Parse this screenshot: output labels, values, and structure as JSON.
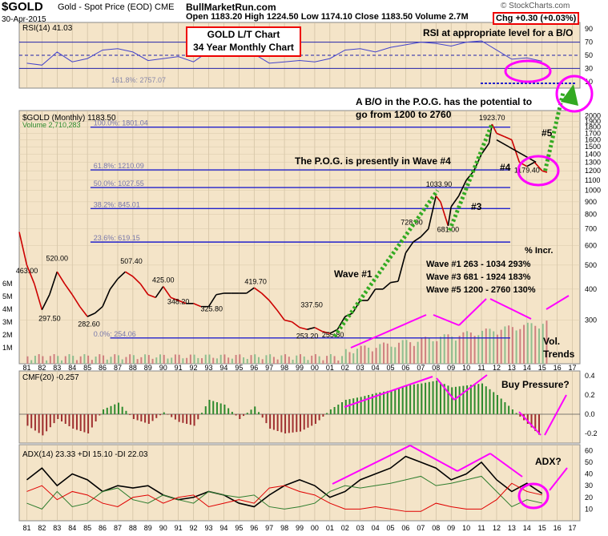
{
  "header": {
    "symbol": "$GOLD",
    "description": "Gold - Spot Price (EOD)  CME",
    "date": "30-Apr-2015",
    "site": "BullMarketRun.com",
    "ohlc": "Open 1183.20  High 1224.50  Low 1174.10  Close 1183.50  Volume 2.7M",
    "chg_label": "Chg",
    "chg_value": "+0.30 (+0.03%)",
    "copyright": "© StockCharts.com"
  },
  "annotation_box": {
    "line1": "GOLD L/T Chart",
    "line2": "34 Year Monthly Chart"
  },
  "colors": {
    "panel_bg": "#f4e4c8",
    "rsi_line": "#4444cc",
    "price_line": "#000000",
    "price_up": "#000000",
    "price_down": "#cc0000",
    "fib_line": "#2222cc",
    "volume_up": "#8fbf8f",
    "volume_down": "#d08080",
    "cmf_pos": "#2e8b2e",
    "cmf_neg": "#a03030",
    "adx_line": "#000000",
    "plus_di": "#2e7d2e",
    "minus_di": "#e00000",
    "magenta": "#ff00ff",
    "green_dots": "#33aa22",
    "annotation_red": "#e00000"
  },
  "chart_data": [
    {
      "type": "line",
      "panel": "rsi",
      "title": "RSI(14) 41.03",
      "ylim": [
        0,
        100
      ],
      "yticks": [
        10,
        30,
        50,
        70,
        90
      ],
      "reference_lines": [
        30,
        50,
        70
      ],
      "annotation": "RSI at appropriate level for a B/O",
      "fib_label": "161.8%: 2757.07",
      "series": [
        {
          "x": [
            1981,
            1982,
            1983,
            1984,
            1985,
            1986,
            1987,
            1988,
            1989,
            1990,
            1991,
            1992,
            1993,
            1994,
            1995,
            1996,
            1997,
            1998,
            1999,
            2000,
            2001,
            2002,
            2003,
            2004,
            2005,
            2006,
            2007,
            2008,
            2009,
            2010,
            2011,
            2012,
            2013,
            2014,
            2015
          ],
          "values": [
            38,
            35,
            55,
            40,
            45,
            58,
            60,
            55,
            42,
            45,
            48,
            40,
            56,
            50,
            48,
            52,
            38,
            40,
            42,
            40,
            45,
            58,
            60,
            55,
            62,
            66,
            70,
            68,
            64,
            70,
            72,
            58,
            44,
            46,
            41
          ]
        }
      ]
    },
    {
      "type": "line",
      "panel": "price",
      "title": "$GOLD (Monthly) 1183.50",
      "volume_label": "Volume 2,710,283",
      "y_scale": "log",
      "ylim": [
        200,
        2100
      ],
      "yticks": [
        300,
        400,
        500,
        600,
        700,
        800,
        900,
        1000,
        1100,
        1200,
        1300,
        1400,
        1500,
        1600,
        1700,
        1800,
        1900,
        2000
      ],
      "volume_ticks": [
        "6M",
        "5M",
        "4M",
        "3M",
        "2M",
        "1M"
      ],
      "fib_levels": [
        {
          "label": "100.0%: 1801.04",
          "value": 1801.04
        },
        {
          "label": "61.8%: 1210.09",
          "value": 1210.09
        },
        {
          "label": "50.0%: 1027.55",
          "value": 1027.55
        },
        {
          "label": "38.2%: 845.01",
          "value": 845.01
        },
        {
          "label": "23.6%: 619.15",
          "value": 619.15
        },
        {
          "label": "0.0%: 254.06",
          "value": 254.06
        }
      ],
      "price_labels": [
        {
          "text": "463.00",
          "x": 1981.0,
          "y": 463
        },
        {
          "text": "520.00",
          "x": 1983.0,
          "y": 520
        },
        {
          "text": "297.50",
          "x": 1982.5,
          "y": 297.5
        },
        {
          "text": "282.60",
          "x": 1985.1,
          "y": 282.6
        },
        {
          "text": "507.40",
          "x": 1987.9,
          "y": 507.4
        },
        {
          "text": "425.00",
          "x": 1990.0,
          "y": 425
        },
        {
          "text": "348.20",
          "x": 1991.0,
          "y": 348.2
        },
        {
          "text": "325.80",
          "x": 1993.2,
          "y": 325.8
        },
        {
          "text": "419.70",
          "x": 1996.1,
          "y": 419.7
        },
        {
          "text": "337.50",
          "x": 1999.8,
          "y": 337.5
        },
        {
          "text": "253.20",
          "x": 1999.5,
          "y": 253.2
        },
        {
          "text": "255.80",
          "x": 2001.2,
          "y": 255.8
        },
        {
          "text": "728.00",
          "x": 2006.4,
          "y": 728
        },
        {
          "text": "1033.90",
          "x": 2008.2,
          "y": 1033.9
        },
        {
          "text": "681.00",
          "x": 2008.8,
          "y": 681
        },
        {
          "text": "1923.70",
          "x": 2011.7,
          "y": 1923.7
        },
        {
          "text": "1179.40",
          "x": 2014.0,
          "y": 1179.4
        }
      ],
      "annotations": {
        "bo_text_line1": "A B/O in the P.O.G. has the potential to",
        "bo_text_line2": "go from 1200 to 2760",
        "wave4_text": "The P.O.G. is presently in Wave #4",
        "wave1": "Wave #1",
        "wave3": "#3",
        "wave4": "#4",
        "wave5": "#5",
        "vol_trends_1": "Vol.",
        "vol_trends_2": "Trends",
        "table_header": "% Incr.",
        "table_rows": [
          "Wave #1   263  -  1034   293%",
          "Wave #3   681  -  1924   183%",
          "Wave #5   1200  -  2760   130%"
        ]
      },
      "series": [
        {
          "name": "$GOLD",
          "x": [
            1980.5,
            1981,
            1981.5,
            1982,
            1982.5,
            1983,
            1983.5,
            1984,
            1984.5,
            1985,
            1985.5,
            1986,
            1986.5,
            1987,
            1987.5,
            1988,
            1988.5,
            1989,
            1989.5,
            1990,
            1990.5,
            1991,
            1991.5,
            1992,
            1992.5,
            1993,
            1993.5,
            1994,
            1994.5,
            1995,
            1995.5,
            1996,
            1996.5,
            1997,
            1997.5,
            1998,
            1998.5,
            1999,
            1999.5,
            2000,
            2000.5,
            2001,
            2001.5,
            2002,
            2002.5,
            2003,
            2003.5,
            2004,
            2004.5,
            2005,
            2005.5,
            2006,
            2006.5,
            2007,
            2007.5,
            2008,
            2008.3,
            2008.8,
            2009,
            2009.5,
            2010,
            2010.5,
            2011,
            2011.5,
            2011.7,
            2012,
            2012.5,
            2013,
            2013.5,
            2014,
            2014.5,
            2015,
            2015.33
          ],
          "values": [
            680,
            500,
            420,
            330,
            380,
            470,
            420,
            380,
            340,
            310,
            320,
            340,
            400,
            440,
            470,
            450,
            420,
            380,
            370,
            410,
            370,
            360,
            350,
            350,
            340,
            340,
            380,
            385,
            385,
            385,
            385,
            405,
            385,
            360,
            330,
            300,
            295,
            280,
            275,
            280,
            270,
            265,
            275,
            310,
            320,
            360,
            360,
            400,
            400,
            425,
            430,
            560,
            620,
            650,
            700,
            950,
            900,
            720,
            860,
            950,
            1100,
            1200,
            1400,
            1550,
            1850,
            1700,
            1650,
            1600,
            1300,
            1250,
            1300,
            1200,
            1183.5
          ]
        }
      ]
    },
    {
      "type": "bar",
      "panel": "cmf",
      "title": "CMF(20) -0.257",
      "annotation": "Buy Pressure?",
      "ylim": [
        -0.3,
        0.45
      ],
      "yticks": [
        -0.2,
        0.0,
        0.2,
        0.4
      ],
      "series": [
        {
          "x": [
            1981,
            1982,
            1983,
            1984,
            1985,
            1986,
            1987,
            1988,
            1989,
            1990,
            1991,
            1992,
            1993,
            1994,
            1995,
            1996,
            1997,
            1998,
            1999,
            2000,
            2001,
            2002,
            2003,
            2004,
            2005,
            2006,
            2007,
            2008,
            2009,
            2010,
            2011,
            2012,
            2013,
            2014,
            2015
          ],
          "values": [
            -0.12,
            -0.22,
            -0.05,
            -0.15,
            -0.2,
            0.05,
            0.12,
            -0.05,
            -0.1,
            0.02,
            -0.08,
            -0.12,
            0.15,
            0.1,
            -0.05,
            0.08,
            -0.15,
            -0.2,
            -0.18,
            -0.1,
            0.05,
            0.15,
            0.18,
            0.22,
            0.25,
            0.3,
            0.32,
            0.35,
            0.28,
            0.3,
            0.32,
            0.2,
            0.05,
            -0.1,
            -0.25
          ]
        }
      ]
    },
    {
      "type": "line",
      "panel": "adx",
      "title": "ADX(14) 23.33  +DI 15.10  -DI 22.03",
      "annotation": "ADX?",
      "ylim": [
        0,
        65
      ],
      "yticks": [
        10,
        20,
        30,
        40,
        50,
        60
      ],
      "series": [
        {
          "name": "ADX(14) 23.33",
          "x": [
            1981,
            1982,
            1983,
            1984,
            1985,
            1986,
            1987,
            1988,
            1989,
            1990,
            1991,
            1992,
            1993,
            1994,
            1995,
            1996,
            1997,
            1998,
            1999,
            2000,
            2001,
            2002,
            2003,
            2004,
            2005,
            2006,
            2007,
            2008,
            2009,
            2010,
            2011,
            2012,
            2013,
            2014,
            2015
          ],
          "values": [
            35,
            45,
            30,
            40,
            35,
            25,
            30,
            28,
            30,
            22,
            18,
            20,
            25,
            22,
            15,
            12,
            22,
            30,
            35,
            30,
            20,
            25,
            35,
            40,
            45,
            55,
            50,
            45,
            35,
            40,
            50,
            35,
            25,
            32,
            23.33
          ]
        },
        {
          "name": "+DI 15.10",
          "x": [
            1981,
            1982,
            1983,
            1984,
            1985,
            1986,
            1987,
            1988,
            1989,
            1990,
            1991,
            1992,
            1993,
            1994,
            1995,
            1996,
            1997,
            1998,
            1999,
            2000,
            2001,
            2002,
            2003,
            2004,
            2005,
            2006,
            2007,
            2008,
            2009,
            2010,
            2011,
            2012,
            2013,
            2014,
            2015
          ],
          "values": [
            15,
            10,
            25,
            12,
            15,
            25,
            28,
            18,
            15,
            22,
            18,
            15,
            25,
            22,
            20,
            22,
            12,
            10,
            12,
            15,
            25,
            30,
            28,
            30,
            32,
            35,
            38,
            30,
            32,
            35,
            38,
            25,
            12,
            18,
            15.1
          ]
        },
        {
          "name": "-DI 22.03",
          "x": [
            1981,
            1982,
            1983,
            1984,
            1985,
            1986,
            1987,
            1988,
            1989,
            1990,
            1991,
            1992,
            1993,
            1994,
            1995,
            1996,
            1997,
            1998,
            1999,
            2000,
            2001,
            2002,
            2003,
            2004,
            2005,
            2006,
            2007,
            2008,
            2009,
            2010,
            2011,
            2012,
            2013,
            2014,
            2015
          ],
          "values": [
            25,
            30,
            18,
            25,
            22,
            15,
            12,
            20,
            22,
            15,
            20,
            22,
            12,
            15,
            18,
            15,
            28,
            30,
            25,
            22,
            15,
            10,
            10,
            12,
            10,
            8,
            8,
            15,
            12,
            10,
            10,
            18,
            32,
            25,
            22.03
          ]
        }
      ]
    }
  ],
  "x_axis": {
    "labels": [
      "81",
      "82",
      "83",
      "84",
      "85",
      "86",
      "87",
      "88",
      "89",
      "90",
      "91",
      "92",
      "93",
      "94",
      "95",
      "96",
      "97",
      "98",
      "99",
      "00",
      "01",
      "02",
      "03",
      "04",
      "05",
      "06",
      "07",
      "08",
      "09",
      "10",
      "11",
      "12",
      "13",
      "14",
      "15",
      "16",
      "17"
    ],
    "start_year": 1981
  }
}
